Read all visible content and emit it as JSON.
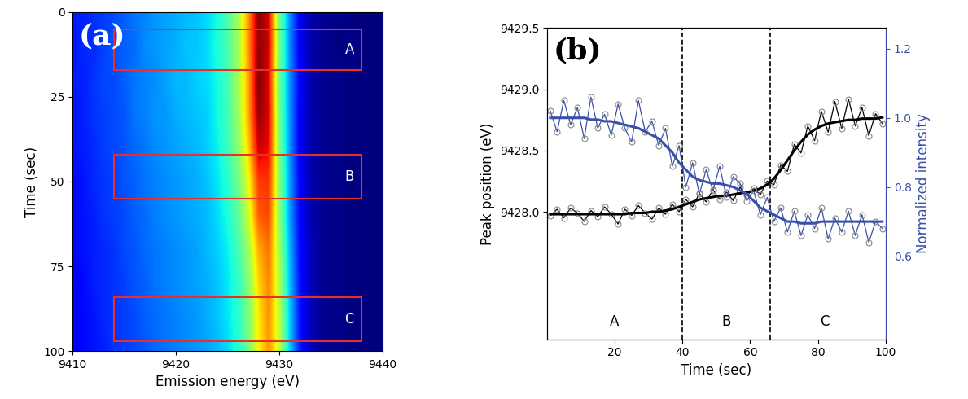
{
  "chart_data": [
    {
      "type": "heatmap",
      "panel": "(a)",
      "x_label": "Emission energy (eV)",
      "y_label": "Time (sec)",
      "x": [
        9410,
        9411,
        9412,
        9413,
        9414,
        9415,
        9416,
        9417,
        9418,
        9419,
        9420,
        9421,
        9422,
        9423,
        9424,
        9425,
        9426,
        9427,
        9428,
        9429,
        9430,
        9431,
        9432,
        9433,
        9434,
        9435,
        9436,
        9437,
        9438,
        9439,
        9440
      ],
      "y": [
        0,
        10,
        20,
        30,
        40,
        50,
        60,
        70,
        80,
        90,
        100
      ],
      "cells": [
        [
          0.22,
          0.22,
          0.24,
          0.25,
          0.26,
          0.28,
          0.3,
          0.31,
          0.33,
          0.34,
          0.35,
          0.36,
          0.37,
          0.39,
          0.42,
          0.48,
          0.58,
          0.75,
          0.98,
          0.92,
          0.52,
          0.33,
          0.18,
          0.12,
          0.1,
          0.09,
          0.09,
          0.08,
          0.08,
          0.08,
          0.08
        ],
        [
          0.21,
          0.23,
          0.23,
          0.25,
          0.27,
          0.28,
          0.29,
          0.32,
          0.33,
          0.34,
          0.35,
          0.37,
          0.37,
          0.39,
          0.43,
          0.48,
          0.57,
          0.76,
          0.97,
          0.93,
          0.53,
          0.32,
          0.18,
          0.12,
          0.1,
          0.09,
          0.08,
          0.09,
          0.08,
          0.08,
          0.08
        ],
        [
          0.22,
          0.22,
          0.24,
          0.26,
          0.26,
          0.28,
          0.3,
          0.31,
          0.32,
          0.34,
          0.36,
          0.36,
          0.38,
          0.39,
          0.42,
          0.47,
          0.58,
          0.74,
          0.99,
          0.91,
          0.52,
          0.33,
          0.19,
          0.12,
          0.1,
          0.09,
          0.09,
          0.08,
          0.08,
          0.08,
          0.08
        ],
        [
          0.21,
          0.22,
          0.24,
          0.25,
          0.26,
          0.27,
          0.3,
          0.31,
          0.33,
          0.33,
          0.35,
          0.36,
          0.37,
          0.38,
          0.42,
          0.47,
          0.57,
          0.74,
          0.97,
          0.92,
          0.53,
          0.33,
          0.18,
          0.12,
          0.1,
          0.09,
          0.09,
          0.08,
          0.08,
          0.08,
          0.08
        ],
        [
          0.21,
          0.22,
          0.23,
          0.25,
          0.26,
          0.27,
          0.29,
          0.3,
          0.32,
          0.33,
          0.34,
          0.35,
          0.36,
          0.38,
          0.41,
          0.46,
          0.55,
          0.7,
          0.93,
          0.9,
          0.54,
          0.33,
          0.18,
          0.12,
          0.1,
          0.09,
          0.09,
          0.08,
          0.08,
          0.08,
          0.08
        ],
        [
          0.2,
          0.21,
          0.23,
          0.24,
          0.25,
          0.27,
          0.28,
          0.3,
          0.31,
          0.32,
          0.33,
          0.34,
          0.35,
          0.37,
          0.4,
          0.44,
          0.52,
          0.65,
          0.85,
          0.86,
          0.55,
          0.34,
          0.19,
          0.12,
          0.1,
          0.09,
          0.09,
          0.08,
          0.08,
          0.08,
          0.08
        ],
        [
          0.2,
          0.21,
          0.22,
          0.24,
          0.25,
          0.26,
          0.28,
          0.29,
          0.31,
          0.32,
          0.33,
          0.34,
          0.35,
          0.36,
          0.39,
          0.43,
          0.5,
          0.62,
          0.82,
          0.84,
          0.56,
          0.34,
          0.19,
          0.12,
          0.1,
          0.09,
          0.09,
          0.08,
          0.08,
          0.08,
          0.08
        ],
        [
          0.2,
          0.21,
          0.22,
          0.23,
          0.24,
          0.26,
          0.27,
          0.29,
          0.3,
          0.31,
          0.32,
          0.33,
          0.34,
          0.36,
          0.38,
          0.41,
          0.47,
          0.57,
          0.74,
          0.8,
          0.58,
          0.36,
          0.2,
          0.13,
          0.1,
          0.09,
          0.09,
          0.08,
          0.08,
          0.08,
          0.08
        ],
        [
          0.19,
          0.2,
          0.22,
          0.23,
          0.24,
          0.25,
          0.27,
          0.28,
          0.3,
          0.31,
          0.32,
          0.33,
          0.34,
          0.35,
          0.37,
          0.4,
          0.45,
          0.54,
          0.7,
          0.78,
          0.6,
          0.37,
          0.21,
          0.13,
          0.1,
          0.09,
          0.09,
          0.08,
          0.08,
          0.08,
          0.08
        ],
        [
          0.19,
          0.2,
          0.21,
          0.23,
          0.24,
          0.25,
          0.26,
          0.28,
          0.29,
          0.3,
          0.31,
          0.32,
          0.33,
          0.35,
          0.37,
          0.4,
          0.44,
          0.53,
          0.68,
          0.77,
          0.61,
          0.38,
          0.21,
          0.13,
          0.1,
          0.09,
          0.09,
          0.08,
          0.08,
          0.08,
          0.08
        ],
        [
          0.19,
          0.2,
          0.21,
          0.22,
          0.24,
          0.25,
          0.26,
          0.27,
          0.29,
          0.3,
          0.31,
          0.32,
          0.33,
          0.34,
          0.36,
          0.39,
          0.44,
          0.52,
          0.67,
          0.76,
          0.62,
          0.38,
          0.22,
          0.13,
          0.1,
          0.09,
          0.09,
          0.08,
          0.08,
          0.08,
          0.08
        ]
      ],
      "xlim": [
        9410,
        9440
      ],
      "xticks": [
        9410,
        9420,
        9430,
        9440
      ],
      "ylim": [
        100,
        0
      ],
      "yticks": [
        0,
        25,
        50,
        75,
        100
      ],
      "regions": [
        {
          "label": "A",
          "x": [
            9414,
            9438
          ],
          "y": [
            5,
            17
          ]
        },
        {
          "label": "B",
          "x": [
            9414,
            9438
          ],
          "y": [
            42,
            55
          ]
        },
        {
          "label": "C",
          "x": [
            9414,
            9438
          ],
          "y": [
            84,
            97
          ]
        }
      ]
    },
    {
      "type": "line",
      "panel": "(b)",
      "x_label": "Time (sec)",
      "y_label": "Peak position (eV)",
      "y2_label": "Normalized intensity",
      "x": [
        1,
        3,
        5,
        7,
        9,
        11,
        13,
        15,
        17,
        19,
        21,
        23,
        25,
        27,
        29,
        31,
        33,
        35,
        37,
        39,
        41,
        43,
        45,
        47,
        49,
        51,
        53,
        55,
        57,
        59,
        61,
        63,
        65,
        67,
        69,
        71,
        73,
        75,
        77,
        79,
        81,
        83,
        85,
        87,
        89,
        91,
        93,
        95,
        97,
        99
      ],
      "series": [
        {
          "axis": "y",
          "color": "#000000",
          "marker": "o",
          "line_style": "solid",
          "values": [
            9427.97,
            9428.02,
            9427.95,
            9428.03,
            9427.99,
            9427.92,
            9428.01,
            9427.96,
            9428.04,
            9427.98,
            9427.9,
            9428.02,
            9427.97,
            9428.05,
            9427.99,
            9427.94,
            9428.03,
            9427.98,
            9428.06,
            9428.0,
            9428.1,
            9428.04,
            9428.15,
            9428.08,
            9428.18,
            9428.1,
            9428.16,
            9428.09,
            9428.2,
            9428.13,
            9428.19,
            9428.14,
            9428.25,
            9428.22,
            9428.38,
            9428.33,
            9428.55,
            9428.48,
            9428.7,
            9428.58,
            9428.82,
            9428.65,
            9428.9,
            9428.68,
            9428.92,
            9428.7,
            9428.85,
            9428.62,
            9428.8,
            9428.72
          ]
        },
        {
          "axis": "y2",
          "color": "#3a4fa8",
          "marker": "o",
          "line_style": "solid",
          "values": [
            1.02,
            0.96,
            1.05,
            0.98,
            1.03,
            0.94,
            1.06,
            0.97,
            1.01,
            0.95,
            1.04,
            0.97,
            0.93,
            1.05,
            0.96,
            0.99,
            0.92,
            0.97,
            0.86,
            0.92,
            0.8,
            0.87,
            0.78,
            0.85,
            0.79,
            0.86,
            0.77,
            0.83,
            0.81,
            0.76,
            0.79,
            0.72,
            0.77,
            0.7,
            0.74,
            0.67,
            0.73,
            0.66,
            0.72,
            0.68,
            0.74,
            0.65,
            0.71,
            0.67,
            0.73,
            0.66,
            0.72,
            0.64,
            0.7,
            0.68
          ]
        },
        {
          "axis": "y",
          "color": "#000000",
          "marker": "none",
          "line_style": "solid",
          "values": [
            9427.98,
            9427.98,
            9427.98,
            9427.98,
            9427.98,
            9427.98,
            9427.98,
            9427.98,
            9427.98,
            9427.98,
            9427.98,
            9427.98,
            9427.99,
            9427.99,
            9427.99,
            9428.0,
            9428.0,
            9428.01,
            9428.02,
            9428.04,
            9428.06,
            9428.08,
            9428.1,
            9428.11,
            9428.12,
            9428.13,
            9428.13,
            9428.14,
            9428.15,
            9428.16,
            9428.17,
            9428.19,
            9428.22,
            9428.27,
            9428.34,
            9428.42,
            9428.5,
            9428.57,
            9428.63,
            9428.67,
            9428.7,
            9428.72,
            9428.73,
            9428.74,
            9428.75,
            9428.75,
            9428.76,
            9428.76,
            9428.76,
            9428.77
          ]
        },
        {
          "axis": "y2",
          "color": "#3a4fa8",
          "marker": "none",
          "line_style": "solid",
          "values": [
            1.0,
            1.0,
            1.0,
            1.0,
            1.0,
            1.0,
            0.995,
            0.995,
            0.99,
            0.99,
            0.985,
            0.98,
            0.975,
            0.97,
            0.96,
            0.95,
            0.94,
            0.92,
            0.9,
            0.87,
            0.85,
            0.83,
            0.82,
            0.815,
            0.81,
            0.81,
            0.805,
            0.8,
            0.79,
            0.78,
            0.76,
            0.74,
            0.73,
            0.72,
            0.71,
            0.7,
            0.7,
            0.695,
            0.695,
            0.695,
            0.7,
            0.7,
            0.7,
            0.7,
            0.7,
            0.7,
            0.7,
            0.7,
            0.7,
            0.7
          ]
        }
      ],
      "xlim": [
        0,
        100
      ],
      "xticks": [
        20,
        40,
        60,
        80,
        100
      ],
      "ylim": [
        9426.96,
        9429.5
      ],
      "yticks": [
        9428.0,
        9428.5,
        9429.0,
        9429.5
      ],
      "y2lim": [
        0.36,
        1.26
      ],
      "y2ticks": [
        0.6,
        0.8,
        1.0,
        1.2
      ],
      "vlines": [
        40,
        66
      ],
      "annotations": [
        {
          "text": "A",
          "x": 20,
          "y": 9427.1
        },
        {
          "text": "B",
          "x": 53,
          "y": 9427.1
        },
        {
          "text": "C",
          "x": 82,
          "y": 9427.1
        }
      ]
    }
  ]
}
